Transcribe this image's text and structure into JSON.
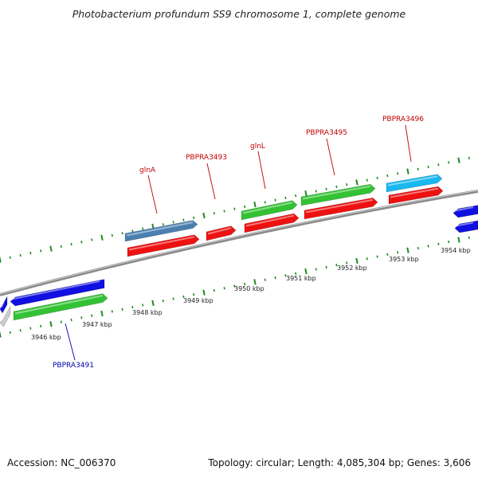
{
  "title": "Photobacterium profundum SS9 chromosome 1, complete genome",
  "footer": {
    "accession": "Accession: NC_006370",
    "summary": "Topology: circular; Length: 4,085,304 bp; Genes: 3,606"
  },
  "colors": {
    "backbone": "#8a8a8a",
    "tick_dots": "#1f8a1f",
    "gene_label_forward": "#c00000",
    "gene_label_reverse": "#0000b0",
    "kbp_label": "#222222",
    "blue": "#1010e0",
    "green": "#33c233",
    "red": "#ee1111",
    "steelblue": "#4a7fb0",
    "cyan": "#19b8f0",
    "gray": "#cccccc"
  },
  "kbp_labels": [
    "3946 kbp",
    "3947 kbp",
    "3948 kbp",
    "3949 kbp",
    "3950 kbp",
    "3951 kbp",
    "3952 kbp",
    "3953 kbp",
    "3954 kbp"
  ],
  "gene_labels": [
    "glnA",
    "PBPRA3493",
    "glnL",
    "PBPRA3495",
    "PBPRA3496",
    "PBPRA3491"
  ],
  "features": [
    {
      "color": "blue",
      "strand": "reverse"
    },
    {
      "color": "gray",
      "strand": "reverse"
    },
    {
      "color": "blue",
      "strand": "reverse"
    },
    {
      "color": "green",
      "strand": "forward"
    },
    {
      "color": "steelblue",
      "strand": "forward"
    },
    {
      "color": "red",
      "strand": "forward"
    },
    {
      "color": "red",
      "strand": "forward"
    },
    {
      "color": "green",
      "strand": "forward"
    },
    {
      "color": "red",
      "strand": "forward"
    },
    {
      "color": "green",
      "strand": "forward"
    },
    {
      "color": "red",
      "strand": "forward"
    },
    {
      "color": "cyan",
      "strand": "forward"
    },
    {
      "color": "red",
      "strand": "forward"
    },
    {
      "color": "blue",
      "strand": "reverse"
    },
    {
      "color": "blue",
      "strand": "reverse"
    }
  ]
}
